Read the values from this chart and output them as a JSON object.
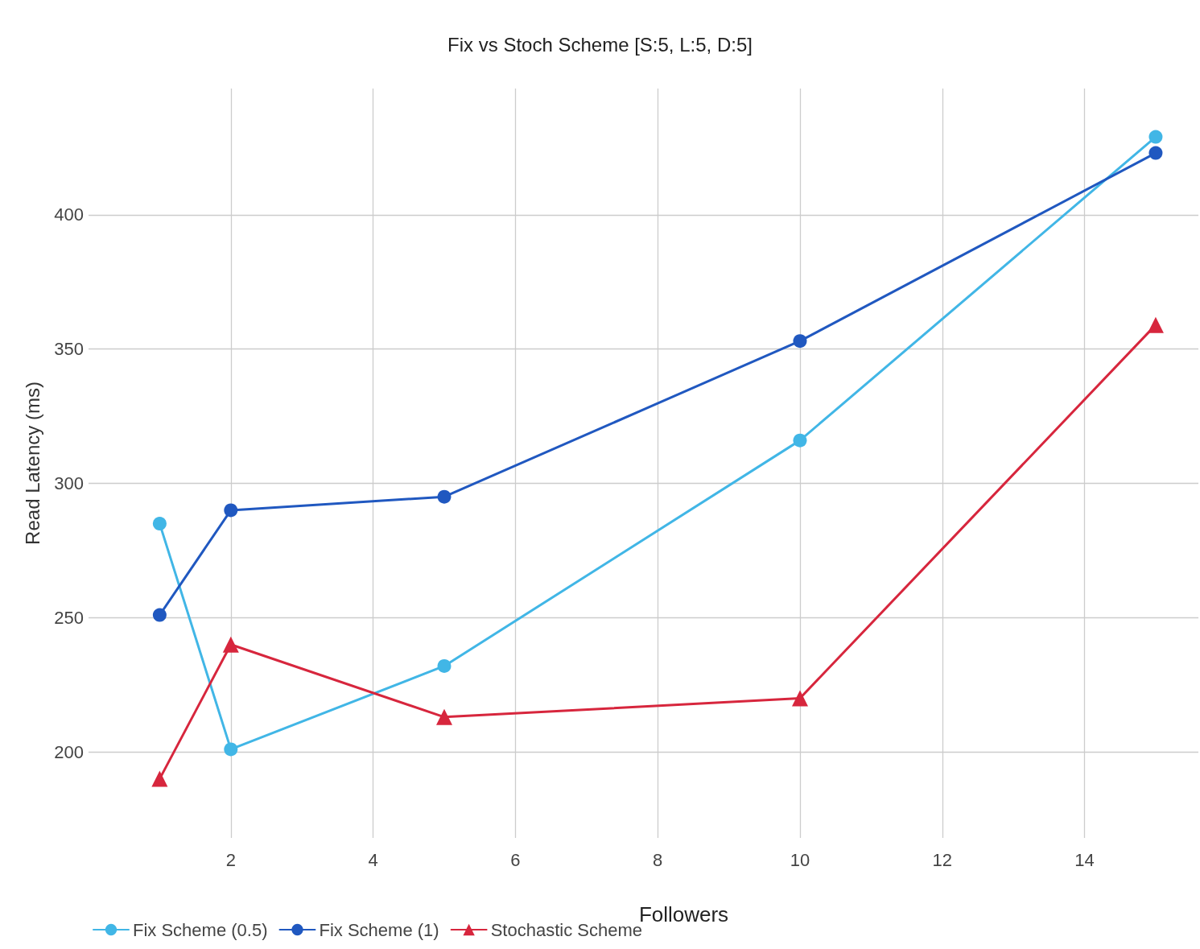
{
  "chart_data": {
    "type": "line",
    "title": "Fix vs Stoch Scheme [S:5, L:5, D:5]",
    "xlabel": "Followers",
    "ylabel": "Read Latency (ms)",
    "x": [
      1,
      2,
      5,
      10,
      15
    ],
    "series": [
      {
        "name": "Fix Scheme (0.5)",
        "color": "#41b6e6",
        "marker": "circle",
        "values": [
          285,
          201,
          232,
          316,
          429
        ]
      },
      {
        "name": "Fix Scheme (1)",
        "color": "#2058c0",
        "marker": "circle",
        "values": [
          251,
          290,
          295,
          353,
          423
        ]
      },
      {
        "name": "Stochastic Scheme",
        "color": "#d7263d",
        "marker": "triangle",
        "values": [
          190,
          240,
          213,
          220,
          359
        ]
      }
    ],
    "xlim": [
      0,
      15.6
    ],
    "xticks": [
      2,
      4,
      6,
      8,
      10,
      12,
      14
    ],
    "ylim": [
      168,
      447
    ],
    "yticks": [
      200,
      250,
      300,
      350,
      400
    ],
    "grid": true,
    "legend": "bottom left",
    "line_style": "solid"
  }
}
